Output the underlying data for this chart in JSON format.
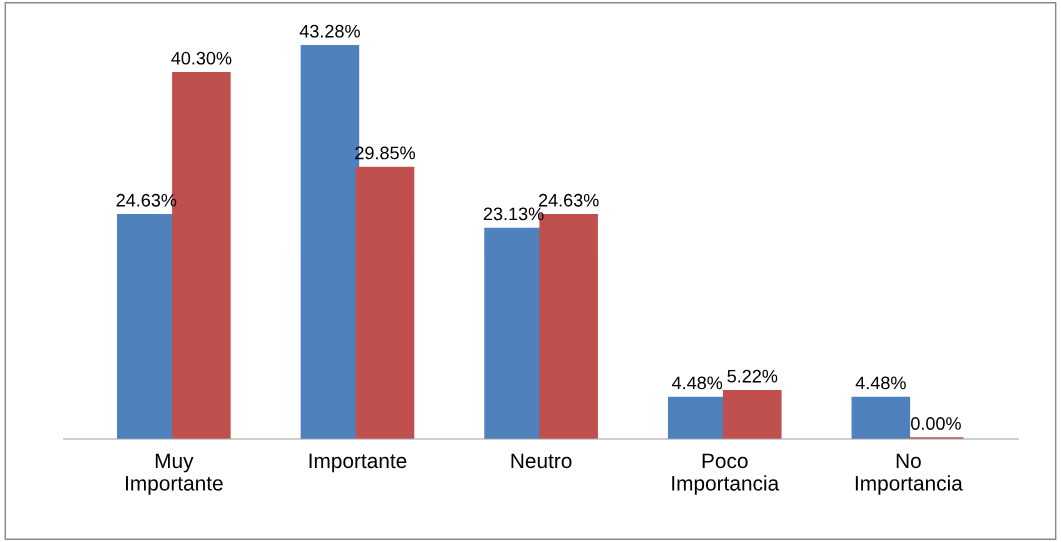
{
  "chart_data": {
    "type": "bar",
    "categories": [
      "Muy\nImportante",
      "Importante",
      "Neutro",
      "Poco\nImportancia",
      "No\nImportancia"
    ],
    "series": [
      {
        "color": "#4f81bd",
        "values": [
          24.63,
          43.28,
          23.13,
          4.48,
          4.48
        ],
        "value_labels": [
          "24.63%",
          "43.28%",
          "23.13%",
          "4.48%",
          "4.48%"
        ]
      },
      {
        "color": "#c0504d",
        "values": [
          40.3,
          29.85,
          24.63,
          5.22,
          0.0
        ],
        "value_labels": [
          "40.30%",
          "29.85%",
          "24.63%",
          "5.22%",
          "0.00%"
        ]
      }
    ],
    "tick_labels": "x",
    "grid": false,
    "legend": false
  }
}
